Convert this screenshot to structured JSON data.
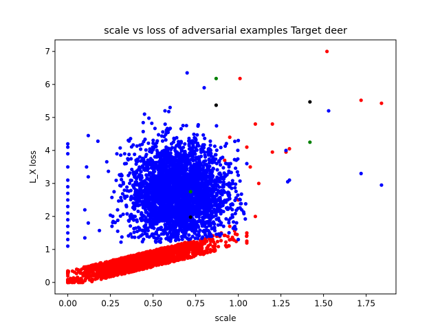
{
  "chart_data": {
    "type": "scatter",
    "title": "scale vs loss of adversarial examples Target deer",
    "xlabel": "scale",
    "ylabel": "L_X loss",
    "xlim": [
      -0.075,
      1.925
    ],
    "ylim": [
      -0.35,
      7.35
    ],
    "x_ticks": [
      "0.00",
      "0.25",
      "0.50",
      "0.75",
      "1.00",
      "1.25",
      "1.50",
      "1.75"
    ],
    "y_ticks": [
      "0",
      "1",
      "2",
      "3",
      "4",
      "5",
      "6",
      "7"
    ],
    "grid": false,
    "legend": "none",
    "colors": {
      "blue": "#0000ff",
      "red": "#ff0000",
      "green": "#008000",
      "black": "#000000"
    },
    "series": [
      {
        "color": "blue",
        "description_points": "dense cloud centered near scale 0.65, loss 2.7; vertical column at scale 0",
        "points": [
          [
            0.0,
            1.1
          ],
          [
            0.0,
            1.3
          ],
          [
            0.0,
            1.5
          ],
          [
            0.0,
            1.7
          ],
          [
            0.0,
            1.9
          ],
          [
            0.0,
            2.1
          ],
          [
            0.0,
            2.3
          ],
          [
            0.0,
            2.5
          ],
          [
            0.0,
            2.7
          ],
          [
            0.0,
            2.9
          ],
          [
            0.0,
            3.1
          ],
          [
            0.0,
            3.5
          ],
          [
            0.0,
            3.9
          ],
          [
            0.0,
            4.1
          ],
          [
            0.0,
            4.2
          ],
          [
            0.12,
            4.45
          ],
          [
            0.11,
            3.5
          ],
          [
            0.12,
            3.2
          ],
          [
            0.1,
            2.2
          ],
          [
            0.12,
            1.8
          ],
          [
            0.1,
            1.35
          ],
          [
            0.7,
            6.35
          ],
          [
            0.8,
            5.9
          ],
          [
            0.57,
            5.2
          ],
          [
            0.45,
            5.1
          ],
          [
            0.6,
            5.3
          ],
          [
            1.3,
            3.1
          ],
          [
            1.29,
            3.05
          ],
          [
            1.28,
            4.0
          ],
          [
            1.53,
            5.2
          ],
          [
            1.72,
            3.3
          ],
          [
            1.84,
            2.95
          ],
          [
            1.0,
            4.3
          ],
          [
            1.05,
            3.6
          ],
          [
            0.95,
            2.9
          ],
          [
            1.02,
            2.2
          ],
          [
            0.98,
            1.7
          ],
          [
            1.0,
            1.3
          ]
        ]
      },
      {
        "color": "red",
        "description_points": "band below the blue cloud rising from origin toward scale 1.0, loss 1.3; scattered outliers",
        "points": [
          [
            0.0,
            0.0
          ],
          [
            0.02,
            0.02
          ],
          [
            0.05,
            0.05
          ],
          [
            0.08,
            0.1
          ],
          [
            0.12,
            0.15
          ],
          [
            0.15,
            0.2
          ],
          [
            0.2,
            0.35
          ],
          [
            0.25,
            0.45
          ],
          [
            0.3,
            0.55
          ],
          [
            0.35,
            0.65
          ],
          [
            0.4,
            0.75
          ],
          [
            0.45,
            0.8
          ],
          [
            0.5,
            0.9
          ],
          [
            0.55,
            0.95
          ],
          [
            0.6,
            1.0
          ],
          [
            0.65,
            1.05
          ],
          [
            0.7,
            1.1
          ],
          [
            0.75,
            1.2
          ],
          [
            0.8,
            1.25
          ],
          [
            0.85,
            1.3
          ],
          [
            0.9,
            1.5
          ],
          [
            0.95,
            1.7
          ],
          [
            1.52,
            7.0
          ],
          [
            1.72,
            5.52
          ],
          [
            1.84,
            5.43
          ],
          [
            1.01,
            6.18
          ],
          [
            1.2,
            4.8
          ],
          [
            1.1,
            4.8
          ],
          [
            1.05,
            4.1
          ],
          [
            1.07,
            3.5
          ],
          [
            1.12,
            3.0
          ],
          [
            1.3,
            4.05
          ],
          [
            1.28,
            3.95
          ],
          [
            1.2,
            3.95
          ],
          [
            0.95,
            4.4
          ],
          [
            0.92,
            3.7
          ],
          [
            1.0,
            2.5
          ],
          [
            1.1,
            2.0
          ],
          [
            1.05,
            1.5
          ]
        ]
      },
      {
        "color": "green",
        "points": [
          [
            0.87,
            6.18
          ],
          [
            1.42,
            4.25
          ],
          [
            0.72,
            2.75
          ]
        ]
      },
      {
        "color": "black",
        "points": [
          [
            0.87,
            5.37
          ],
          [
            1.42,
            5.47
          ],
          [
            0.72,
            1.98
          ]
        ]
      }
    ]
  }
}
